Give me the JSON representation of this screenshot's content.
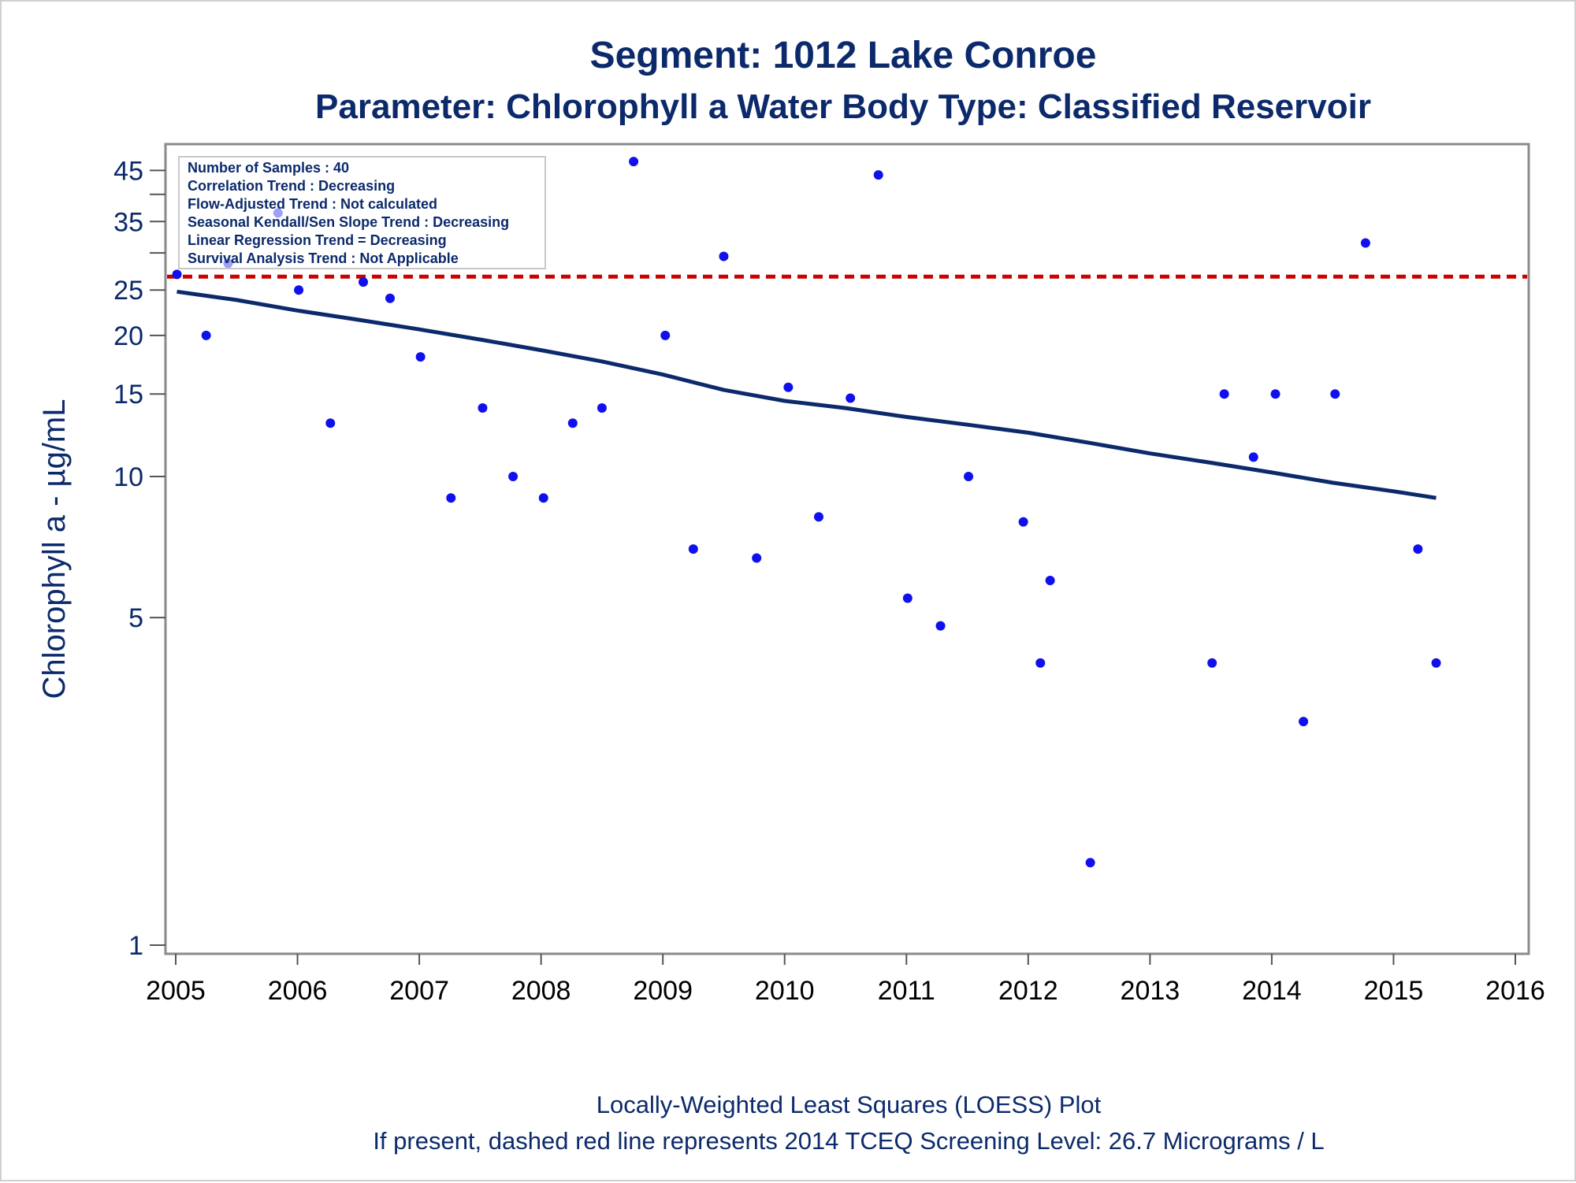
{
  "chart_data": {
    "type": "scatter",
    "title": "Segment: 1012  Lake Conroe",
    "subtitle": "Parameter: Chlorophyll a   Water Body Type: Classified Reservoir",
    "ylabel": "Chlorophyll a -  µg/mL",
    "xlabel": "",
    "x_ticks": [
      "2005",
      "2006",
      "2007",
      "2008",
      "2009",
      "2010",
      "2011",
      "2012",
      "2013",
      "2014",
      "2015",
      "2016"
    ],
    "y_ticks": [
      1,
      5,
      10,
      15,
      20,
      25,
      35,
      45
    ],
    "y_ticks_unlabeled": [
      30,
      40
    ],
    "y_scale": "log",
    "xlim": [
      2005,
      2016
    ],
    "ylim": [
      1,
      50
    ],
    "grid": false,
    "stats_box": {
      "placement": "top-left",
      "lines": [
        "Number of Samples : 40",
        "Correlation Trend : Decreasing",
        "Flow-Adjusted Trend : Not calculated",
        "Seasonal Kendall/Sen Slope Trend : Decreasing",
        "Linear Regression Trend = Decreasing",
        "Survival Analysis Trend : Not Applicable"
      ]
    },
    "screening_level": 26.7,
    "point_color": "#1010ee",
    "loess_color": "#0c2a6b",
    "screening_color": "#cc0000",
    "points": [
      {
        "x": 2005.01,
        "y": 27
      },
      {
        "x": 2005.25,
        "y": 20
      },
      {
        "x": 2005.43,
        "y": 28.5
      },
      {
        "x": 2005.84,
        "y": 36.5
      },
      {
        "x": 2006.01,
        "y": 25
      },
      {
        "x": 2006.27,
        "y": 13
      },
      {
        "x": 2006.54,
        "y": 26
      },
      {
        "x": 2006.76,
        "y": 24
      },
      {
        "x": 2007.01,
        "y": 18
      },
      {
        "x": 2007.26,
        "y": 9
      },
      {
        "x": 2007.52,
        "y": 14
      },
      {
        "x": 2007.77,
        "y": 10
      },
      {
        "x": 2008.02,
        "y": 9
      },
      {
        "x": 2008.26,
        "y": 13
      },
      {
        "x": 2008.5,
        "y": 14
      },
      {
        "x": 2008.76,
        "y": 47
      },
      {
        "x": 2009.02,
        "y": 20
      },
      {
        "x": 2009.25,
        "y": 7
      },
      {
        "x": 2009.5,
        "y": 29.5
      },
      {
        "x": 2009.77,
        "y": 6.7
      },
      {
        "x": 2010.03,
        "y": 15.5
      },
      {
        "x": 2010.28,
        "y": 8.2
      },
      {
        "x": 2010.54,
        "y": 14.7
      },
      {
        "x": 2010.77,
        "y": 44
      },
      {
        "x": 2011.01,
        "y": 5.5
      },
      {
        "x": 2011.28,
        "y": 4.8
      },
      {
        "x": 2011.51,
        "y": 10
      },
      {
        "x": 2011.96,
        "y": 8
      },
      {
        "x": 2012.1,
        "y": 4
      },
      {
        "x": 2012.18,
        "y": 6
      },
      {
        "x": 2012.51,
        "y": 1.5
      },
      {
        "x": 2013.51,
        "y": 4
      },
      {
        "x": 2013.61,
        "y": 15
      },
      {
        "x": 2013.85,
        "y": 11
      },
      {
        "x": 2014.03,
        "y": 15
      },
      {
        "x": 2014.26,
        "y": 3
      },
      {
        "x": 2014.52,
        "y": 15
      },
      {
        "x": 2014.77,
        "y": 31.5
      },
      {
        "x": 2015.2,
        "y": 7
      },
      {
        "x": 2015.35,
        "y": 4
      }
    ],
    "loess": [
      {
        "x": 2005.01,
        "y": 24.8
      },
      {
        "x": 2005.5,
        "y": 23.8
      },
      {
        "x": 2006.0,
        "y": 22.6
      },
      {
        "x": 2006.5,
        "y": 21.6
      },
      {
        "x": 2007.0,
        "y": 20.6
      },
      {
        "x": 2007.5,
        "y": 19.6
      },
      {
        "x": 2008.0,
        "y": 18.6
      },
      {
        "x": 2008.5,
        "y": 17.6
      },
      {
        "x": 2009.0,
        "y": 16.5
      },
      {
        "x": 2009.5,
        "y": 15.3
      },
      {
        "x": 2010.0,
        "y": 14.5
      },
      {
        "x": 2010.5,
        "y": 14.0
      },
      {
        "x": 2011.0,
        "y": 13.4
      },
      {
        "x": 2011.5,
        "y": 12.9
      },
      {
        "x": 2012.0,
        "y": 12.4
      },
      {
        "x": 2012.5,
        "y": 11.8
      },
      {
        "x": 2013.0,
        "y": 11.2
      },
      {
        "x": 2013.5,
        "y": 10.7
      },
      {
        "x": 2014.0,
        "y": 10.2
      },
      {
        "x": 2014.5,
        "y": 9.7
      },
      {
        "x": 2015.0,
        "y": 9.3
      },
      {
        "x": 2015.35,
        "y": 9.0
      }
    ]
  },
  "footer": {
    "line1": "Locally-Weighted Least Squares (LOESS) Plot",
    "line2": "If present, dashed red line represents 2014 TCEQ Screening Level: 26.7 Micrograms / L"
  }
}
